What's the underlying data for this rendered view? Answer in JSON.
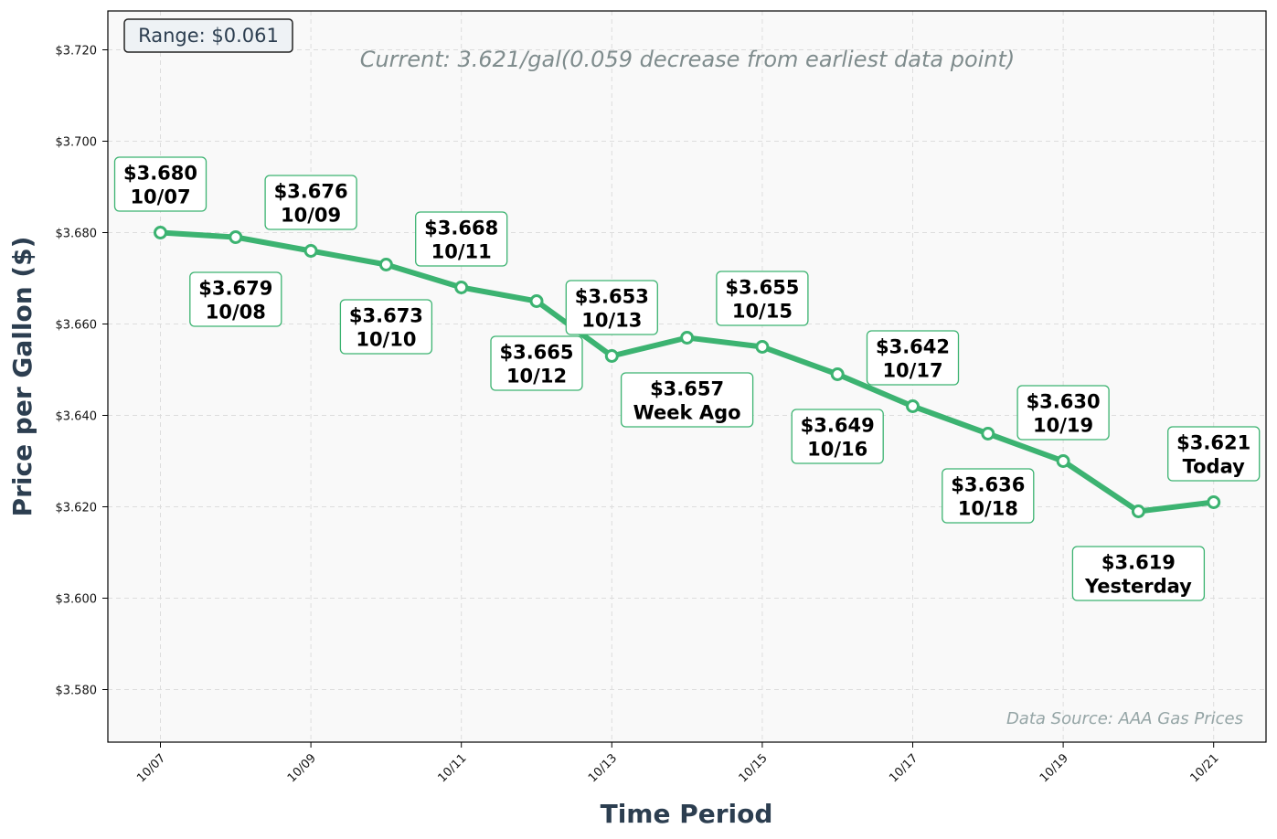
{
  "chart_data": {
    "type": "line",
    "title": "",
    "subtitle": "Current: 3.621/gal(0.059 decrease from earliest data point)",
    "range_label": "Range: $0.061",
    "source_label": "Data Source: AAA Gas Prices",
    "xlabel": "Time Period",
    "ylabel": "Price per Gallon ($)",
    "ylim": [
      3.5685,
      3.7285
    ],
    "grid": true,
    "line_color": "#3cb371",
    "points": [
      {
        "date": "10/07",
        "value": 3.68,
        "price_label": "$3.680",
        "name_label": "10/07",
        "placement": "above"
      },
      {
        "date": "10/08",
        "value": 3.679,
        "price_label": "$3.679",
        "name_label": "10/08",
        "placement": "below"
      },
      {
        "date": "10/09",
        "value": 3.676,
        "price_label": "$3.676",
        "name_label": "10/09",
        "placement": "above"
      },
      {
        "date": "10/10",
        "value": 3.673,
        "price_label": "$3.673",
        "name_label": "10/10",
        "placement": "below"
      },
      {
        "date": "10/11",
        "value": 3.668,
        "price_label": "$3.668",
        "name_label": "10/11",
        "placement": "above"
      },
      {
        "date": "10/12",
        "value": 3.665,
        "price_label": "$3.665",
        "name_label": "10/12",
        "placement": "below"
      },
      {
        "date": "10/13",
        "value": 3.653,
        "price_label": "$3.653",
        "name_label": "10/13",
        "placement": "above"
      },
      {
        "date": "10/14",
        "value": 3.657,
        "price_label": "$3.657",
        "name_label": "Week Ago",
        "placement": "below"
      },
      {
        "date": "10/15",
        "value": 3.655,
        "price_label": "$3.655",
        "name_label": "10/15",
        "placement": "above"
      },
      {
        "date": "10/16",
        "value": 3.649,
        "price_label": "$3.649",
        "name_label": "10/16",
        "placement": "below"
      },
      {
        "date": "10/17",
        "value": 3.642,
        "price_label": "$3.642",
        "name_label": "10/17",
        "placement": "above"
      },
      {
        "date": "10/18",
        "value": 3.636,
        "price_label": "$3.636",
        "name_label": "10/18",
        "placement": "below"
      },
      {
        "date": "10/19",
        "value": 3.63,
        "price_label": "$3.630",
        "name_label": "10/19",
        "placement": "above"
      },
      {
        "date": "10/20",
        "value": 3.619,
        "price_label": "$3.619",
        "name_label": "Yesterday",
        "placement": "below"
      },
      {
        "date": "10/21",
        "value": 3.621,
        "price_label": "$3.621",
        "name_label": "Today",
        "placement": "above"
      }
    ],
    "x_ticks": [
      "10/07",
      "10/09",
      "10/11",
      "10/13",
      "10/15",
      "10/17",
      "10/19",
      "10/21"
    ],
    "y_ticks": [
      {
        "value": 3.58,
        "label": "$3.580"
      },
      {
        "value": 3.6,
        "label": "$3.600"
      },
      {
        "value": 3.62,
        "label": "$3.620"
      },
      {
        "value": 3.64,
        "label": "$3.640"
      },
      {
        "value": 3.66,
        "label": "$3.660"
      },
      {
        "value": 3.68,
        "label": "$3.680"
      },
      {
        "value": 3.7,
        "label": "$3.700"
      },
      {
        "value": 3.72,
        "label": "$3.720"
      }
    ]
  }
}
